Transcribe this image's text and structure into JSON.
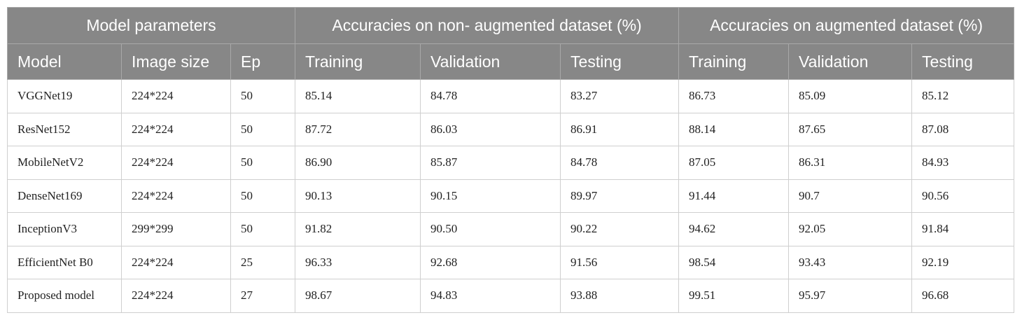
{
  "header": {
    "groups": [
      "Model parameters",
      "Accuracies on non- augmented dataset (%)",
      "Accuracies on augmented dataset (%)"
    ],
    "columns": [
      "Model",
      "Image size",
      "Ep",
      "Training",
      "Validation",
      "Testing",
      "Training",
      "Validation",
      "Testing"
    ]
  },
  "rows": [
    [
      "VGGNet19",
      "224*224",
      "50",
      "85.14",
      "84.78",
      "83.27",
      "86.73",
      "85.09",
      "85.12"
    ],
    [
      "ResNet152",
      "224*224",
      "50",
      "87.72",
      "86.03",
      "86.91",
      "88.14",
      "87.65",
      "87.08"
    ],
    [
      "MobileNetV2",
      "224*224",
      "50",
      "86.90",
      "85.87",
      "84.78",
      "87.05",
      "86.31",
      "84.93"
    ],
    [
      "DenseNet169",
      "224*224",
      "50",
      "90.13",
      "90.15",
      "89.97",
      "91.44",
      "90.7",
      "90.56"
    ],
    [
      "InceptionV3",
      "299*299",
      "50",
      "91.82",
      "90.50",
      "90.22",
      "94.62",
      "92.05",
      "91.84"
    ],
    [
      "EfficientNet B0",
      "224*224",
      "25",
      "96.33",
      "92.68",
      "91.56",
      "98.54",
      "93.43",
      "92.19"
    ],
    [
      "Proposed model",
      "224*224",
      "27",
      "98.67",
      "94.83",
      "93.88",
      "99.51",
      "95.97",
      "96.68"
    ]
  ]
}
